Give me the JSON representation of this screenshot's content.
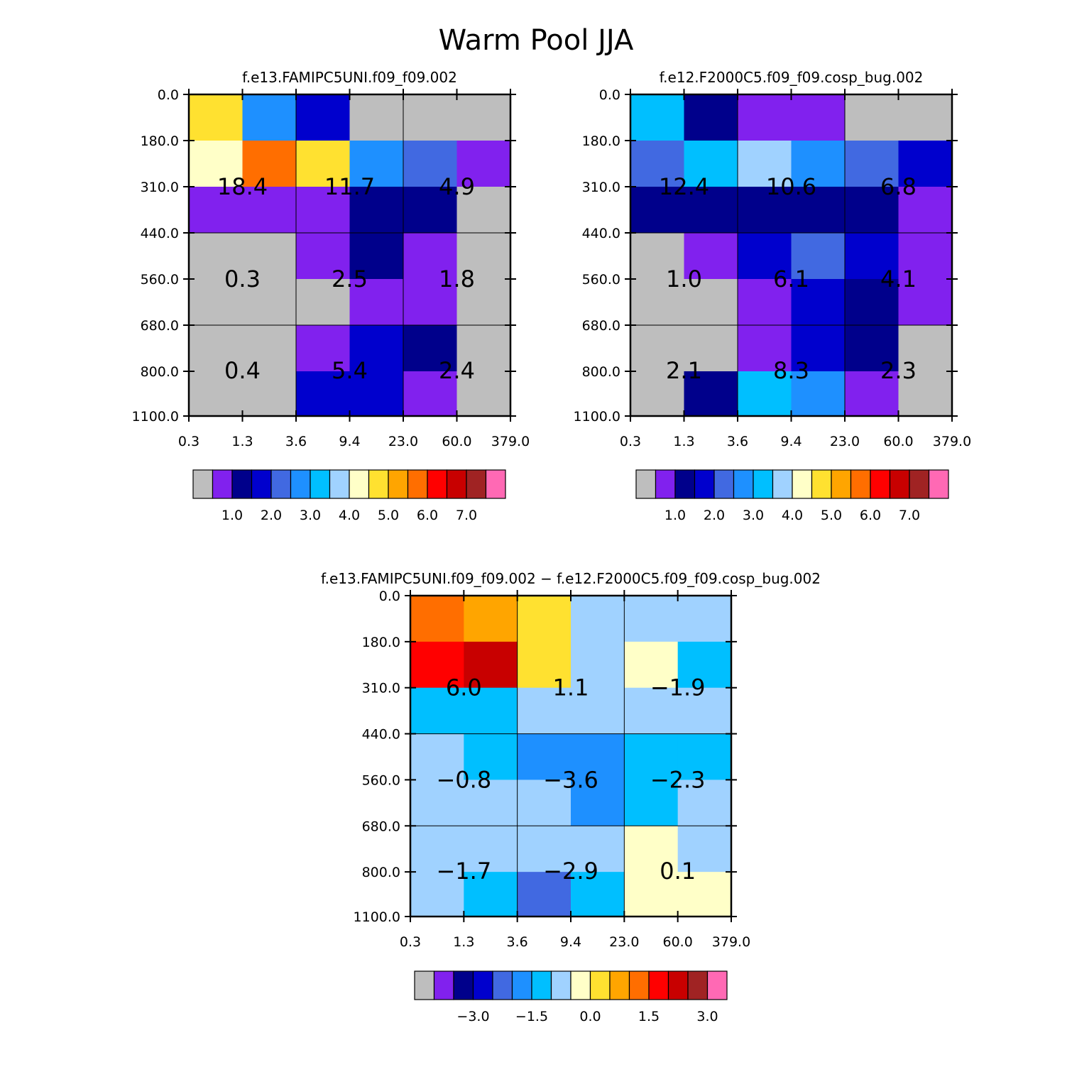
{
  "figure": {
    "title": "Warm Pool JJA"
  },
  "colors": {
    "table1": [
      "#bebebe",
      "#8121ee",
      "#00008b",
      "#0000cd",
      "#4169e1",
      "#1e90ff",
      "#00bfff",
      "#a0d2ff",
      "#ffffc8",
      "#ffe130",
      "#ffa500",
      "#ff6e00",
      "#ff0000",
      "#c80000",
      "#a02323",
      "#ff69b4"
    ],
    "grid_line": "#000000"
  },
  "chart_data": [
    {
      "type": "heatmap",
      "title": "f.e13.FAMIPC5UNI.f09_f09.002",
      "x_tick_labels": [
        "0.3",
        "1.3",
        "3.6",
        "9.4",
        "23.0",
        "60.0",
        "379.0"
      ],
      "y_tick_labels": [
        "0.0",
        "180.0",
        "310.0",
        "440.0",
        "560.0",
        "680.0",
        "800.0",
        "1100.0"
      ],
      "cell_color_index": [
        [
          9,
          5,
          3,
          0,
          0,
          0
        ],
        [
          8,
          11,
          9,
          5,
          4,
          1
        ],
        [
          1,
          1,
          1,
          2,
          2,
          0
        ],
        [
          0,
          0,
          1,
          2,
          1,
          0
        ],
        [
          0,
          0,
          0,
          1,
          1,
          0
        ],
        [
          0,
          0,
          1,
          3,
          2,
          0
        ],
        [
          0,
          0,
          3,
          3,
          1,
          0
        ]
      ],
      "block_labels": [
        [
          "18.4",
          "11.7",
          "4.9"
        ],
        [
          "0.3",
          "2.5",
          "1.8"
        ],
        [
          "0.4",
          "5.4",
          "2.4"
        ]
      ],
      "colorbar": {
        "labels": [
          "1.0",
          "2.0",
          "3.0",
          "4.0",
          "5.0",
          "6.0",
          "7.0"
        ],
        "label_start_box": 1
      }
    },
    {
      "type": "heatmap",
      "title": "f.e12.F2000C5.f09_f09.cosp_bug.002",
      "x_tick_labels": [
        "0.3",
        "1.3",
        "3.6",
        "9.4",
        "23.0",
        "60.0",
        "379.0"
      ],
      "y_tick_labels": [
        "0.0",
        "180.0",
        "310.0",
        "440.0",
        "560.0",
        "680.0",
        "800.0",
        "1100.0"
      ],
      "cell_color_index": [
        [
          6,
          2,
          1,
          1,
          0,
          0
        ],
        [
          4,
          6,
          7,
          5,
          4,
          3
        ],
        [
          2,
          2,
          2,
          2,
          2,
          1
        ],
        [
          0,
          1,
          3,
          4,
          3,
          1
        ],
        [
          0,
          0,
          1,
          3,
          2,
          1
        ],
        [
          0,
          0,
          1,
          3,
          2,
          0
        ],
        [
          0,
          2,
          6,
          5,
          1,
          0
        ]
      ],
      "block_labels": [
        [
          "12.4",
          "10.6",
          "6.8"
        ],
        [
          "1.0",
          "6.1",
          "4.1"
        ],
        [
          "2.1",
          "8.3",
          "2.3"
        ]
      ],
      "colorbar": {
        "labels": [
          "1.0",
          "2.0",
          "3.0",
          "4.0",
          "5.0",
          "6.0",
          "7.0"
        ],
        "label_start_box": 1
      }
    },
    {
      "type": "heatmap",
      "title": "f.e13.FAMIPC5UNI.f09_f09.002 − f.e12.F2000C5.f09_f09.cosp_bug.002",
      "x_tick_labels": [
        "0.3",
        "1.3",
        "3.6",
        "9.4",
        "23.0",
        "60.0",
        "379.0"
      ],
      "y_tick_labels": [
        "0.0",
        "180.0",
        "310.0",
        "440.0",
        "560.0",
        "680.0",
        "800.0",
        "1100.0"
      ],
      "cell_color_index": [
        [
          11,
          10,
          9,
          7,
          7,
          7
        ],
        [
          12,
          13,
          9,
          7,
          8,
          6
        ],
        [
          6,
          6,
          7,
          7,
          7,
          7
        ],
        [
          7,
          6,
          5,
          5,
          6,
          6
        ],
        [
          7,
          7,
          7,
          5,
          6,
          7
        ],
        [
          7,
          7,
          7,
          7,
          8,
          7
        ],
        [
          7,
          6,
          4,
          6,
          8,
          8
        ]
      ],
      "block_labels": [
        [
          "6.0",
          "1.1",
          "−1.9"
        ],
        [
          "−0.8",
          "−3.6",
          "−2.3"
        ],
        [
          "−1.7",
          "−2.9",
          "0.1"
        ]
      ],
      "colorbar": {
        "labels": [
          "−3.0",
          "−1.5",
          "0.0",
          "1.5",
          "3.0"
        ],
        "label_start_box": 2,
        "label_step": 3
      }
    }
  ]
}
